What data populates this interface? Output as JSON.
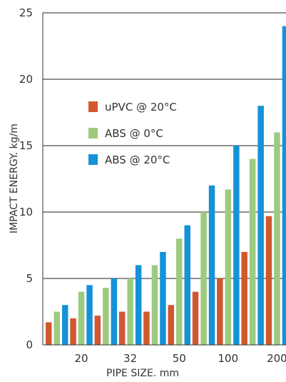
{
  "chart_data": {
    "type": "bar",
    "xlabel": "PIPE SIZE. mm",
    "ylabel": "IMPACT ENERGY. kg/m",
    "ylim": [
      0,
      25
    ],
    "yticks": [
      0,
      5,
      10,
      15,
      20,
      25
    ],
    "grid": true,
    "legend_position": "upper-left inside plot",
    "categories": [
      "",
      "20",
      "",
      "32",
      "",
      "50",
      "",
      "100",
      "",
      "200"
    ],
    "series": [
      {
        "name": "uPVC @ 20°C",
        "color": "#d0582f",
        "values": [
          1.7,
          2.0,
          2.2,
          2.5,
          2.5,
          3.0,
          4.0,
          5.0,
          7.0,
          9.7
        ]
      },
      {
        "name": "ABS @ 0°C",
        "color": "#9ccb80",
        "values": [
          2.5,
          4.0,
          4.3,
          5.0,
          6.0,
          8.0,
          10.0,
          11.7,
          14.0,
          16.0
        ]
      },
      {
        "name": "ABS @ 20°C",
        "color": "#1592d8",
        "values": [
          3.0,
          4.5,
          5.0,
          6.0,
          7.0,
          9.0,
          12.0,
          15.0,
          18.0,
          24.0
        ]
      }
    ]
  }
}
